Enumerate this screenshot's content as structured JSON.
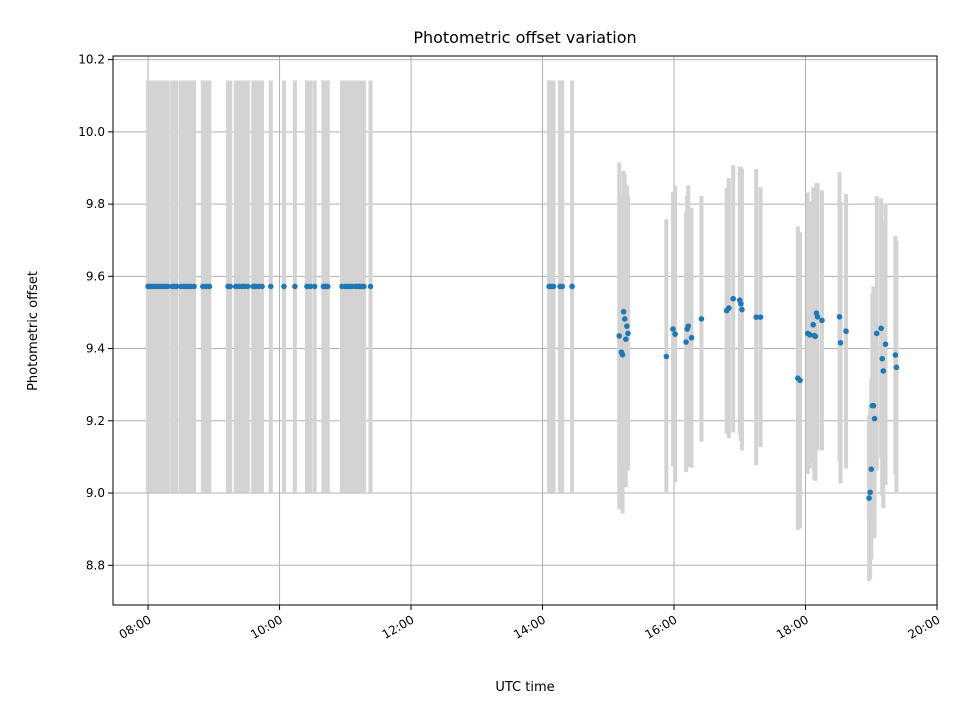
{
  "chart_data": {
    "type": "scatter",
    "title": "Photometric offset variation",
    "xlabel": "UTC time",
    "ylabel": "Photometric offset",
    "x_ticks": [
      "08:00",
      "10:00",
      "12:00",
      "14:00",
      "16:00",
      "18:00",
      "20:00"
    ],
    "y_ticks": [
      "8.8",
      "9.0",
      "9.2",
      "9.4",
      "9.6",
      "9.8",
      "10.0",
      "10.2"
    ],
    "xlim": [
      "07:28",
      "20:00"
    ],
    "ylim": [
      8.69,
      10.21
    ],
    "grid": true,
    "colors": {
      "point": "#1f77b4",
      "errorbar": "#d3d3d3",
      "grid": "#b0b0b0"
    },
    "points": [
      {
        "t": "08:00",
        "y": 9.572,
        "err": 0.57
      },
      {
        "t": "08:02",
        "y": 9.572,
        "err": 0.57
      },
      {
        "t": "08:04",
        "y": 9.572,
        "err": 0.57
      },
      {
        "t": "08:06",
        "y": 9.572,
        "err": 0.57
      },
      {
        "t": "08:08",
        "y": 9.572,
        "err": 0.57
      },
      {
        "t": "08:10",
        "y": 9.572,
        "err": 0.57
      },
      {
        "t": "08:12",
        "y": 9.572,
        "err": 0.57
      },
      {
        "t": "08:14",
        "y": 9.572,
        "err": 0.57
      },
      {
        "t": "08:16",
        "y": 9.572,
        "err": 0.57
      },
      {
        "t": "08:18",
        "y": 9.572,
        "err": 0.57
      },
      {
        "t": "08:22",
        "y": 9.572,
        "err": 0.57
      },
      {
        "t": "08:24",
        "y": 9.572,
        "err": 0.57
      },
      {
        "t": "08:26",
        "y": 9.572,
        "err": 0.57
      },
      {
        "t": "08:30",
        "y": 9.572,
        "err": 0.57
      },
      {
        "t": "08:33",
        "y": 9.572,
        "err": 0.57
      },
      {
        "t": "08:35",
        "y": 9.572,
        "err": 0.57
      },
      {
        "t": "08:37",
        "y": 9.572,
        "err": 0.57
      },
      {
        "t": "08:39",
        "y": 9.572,
        "err": 0.57
      },
      {
        "t": "08:42",
        "y": 9.572,
        "err": 0.57
      },
      {
        "t": "08:50",
        "y": 9.572,
        "err": 0.57
      },
      {
        "t": "08:53",
        "y": 9.572,
        "err": 0.57
      },
      {
        "t": "08:56",
        "y": 9.572,
        "err": 0.57
      },
      {
        "t": "09:13",
        "y": 9.572,
        "err": 0.57
      },
      {
        "t": "09:15",
        "y": 9.572,
        "err": 0.57
      },
      {
        "t": "09:20",
        "y": 9.572,
        "err": 0.57
      },
      {
        "t": "09:23",
        "y": 9.572,
        "err": 0.57
      },
      {
        "t": "09:26",
        "y": 9.572,
        "err": 0.57
      },
      {
        "t": "09:28",
        "y": 9.572,
        "err": 0.57
      },
      {
        "t": "09:31",
        "y": 9.572,
        "err": 0.57
      },
      {
        "t": "09:36",
        "y": 9.572,
        "err": 0.57
      },
      {
        "t": "09:38",
        "y": 9.572,
        "err": 0.57
      },
      {
        "t": "09:41",
        "y": 9.572,
        "err": 0.57
      },
      {
        "t": "09:44",
        "y": 9.572,
        "err": 0.57
      },
      {
        "t": "09:52",
        "y": 9.572,
        "err": 0.57
      },
      {
        "t": "10:04",
        "y": 9.572,
        "err": 0.57
      },
      {
        "t": "10:14",
        "y": 9.572,
        "err": 0.57
      },
      {
        "t": "10:25",
        "y": 9.572,
        "err": 0.57
      },
      {
        "t": "10:28",
        "y": 9.572,
        "err": 0.57
      },
      {
        "t": "10:32",
        "y": 9.572,
        "err": 0.57
      },
      {
        "t": "10:40",
        "y": 9.572,
        "err": 0.57
      },
      {
        "t": "10:42",
        "y": 9.572,
        "err": 0.57
      },
      {
        "t": "10:44",
        "y": 9.572,
        "err": 0.57
      },
      {
        "t": "10:57",
        "y": 9.572,
        "err": 0.57
      },
      {
        "t": "11:00",
        "y": 9.572,
        "err": 0.57
      },
      {
        "t": "11:02",
        "y": 9.572,
        "err": 0.57
      },
      {
        "t": "11:04",
        "y": 9.572,
        "err": 0.57
      },
      {
        "t": "11:06",
        "y": 9.572,
        "err": 0.57
      },
      {
        "t": "11:09",
        "y": 9.572,
        "err": 0.57
      },
      {
        "t": "11:11",
        "y": 9.572,
        "err": 0.57
      },
      {
        "t": "11:13",
        "y": 9.572,
        "err": 0.57
      },
      {
        "t": "11:15",
        "y": 9.572,
        "err": 0.57
      },
      {
        "t": "11:17",
        "y": 9.572,
        "err": 0.57
      },
      {
        "t": "11:23",
        "y": 9.572,
        "err": 0.57
      },
      {
        "t": "14:06",
        "y": 9.572,
        "err": 0.57
      },
      {
        "t": "14:08",
        "y": 9.572,
        "err": 0.57
      },
      {
        "t": "14:10",
        "y": 9.572,
        "err": 0.57
      },
      {
        "t": "14:16",
        "y": 9.572,
        "err": 0.57
      },
      {
        "t": "14:18",
        "y": 9.572,
        "err": 0.57
      },
      {
        "t": "14:27",
        "y": 9.572,
        "err": 0.57
      },
      {
        "t": "15:10",
        "y": 9.435,
        "err": 0.48
      },
      {
        "t": "15:12",
        "y": 9.39,
        "err": 0.43
      },
      {
        "t": "15:13",
        "y": 9.383,
        "err": 0.44
      },
      {
        "t": "15:14",
        "y": 9.502,
        "err": 0.39
      },
      {
        "t": "15:15",
        "y": 9.482,
        "err": 0.4
      },
      {
        "t": "15:16",
        "y": 9.426,
        "err": 0.41
      },
      {
        "t": "15:17",
        "y": 9.462,
        "err": 0.39
      },
      {
        "t": "15:18",
        "y": 9.442,
        "err": 0.38
      },
      {
        "t": "15:53",
        "y": 9.378,
        "err": 0.38
      },
      {
        "t": "15:59",
        "y": 9.454,
        "err": 0.38
      },
      {
        "t": "16:01",
        "y": 9.44,
        "err": 0.41
      },
      {
        "t": "16:11",
        "y": 9.418,
        "err": 0.36
      },
      {
        "t": "16:12",
        "y": 9.454,
        "err": 0.37
      },
      {
        "t": "16:13",
        "y": 9.462,
        "err": 0.39
      },
      {
        "t": "16:16",
        "y": 9.43,
        "err": 0.36
      },
      {
        "t": "16:25",
        "y": 9.482,
        "err": 0.34
      },
      {
        "t": "16:48",
        "y": 9.505,
        "err": 0.34
      },
      {
        "t": "16:50",
        "y": 9.512,
        "err": 0.36
      },
      {
        "t": "16:54",
        "y": 9.538,
        "err": 0.37
      },
      {
        "t": "17:00",
        "y": 9.534,
        "err": 0.37
      },
      {
        "t": "17:01",
        "y": 9.524,
        "err": 0.38
      },
      {
        "t": "17:02",
        "y": 9.508,
        "err": 0.39
      },
      {
        "t": "17:15",
        "y": 9.487,
        "err": 0.41
      },
      {
        "t": "17:19",
        "y": 9.487,
        "err": 0.36
      },
      {
        "t": "17:53",
        "y": 9.318,
        "err": 0.42
      },
      {
        "t": "17:55",
        "y": 9.312,
        "err": 0.41
      },
      {
        "t": "18:02",
        "y": 9.442,
        "err": 0.39
      },
      {
        "t": "18:04",
        "y": 9.438,
        "err": 0.37
      },
      {
        "t": "18:07",
        "y": 9.466,
        "err": 0.38
      },
      {
        "t": "18:08",
        "y": 9.436,
        "err": 0.4
      },
      {
        "t": "18:09",
        "y": 9.434,
        "err": 0.4
      },
      {
        "t": "18:10",
        "y": 9.498,
        "err": 0.36
      },
      {
        "t": "18:11",
        "y": 9.488,
        "err": 0.37
      },
      {
        "t": "18:15",
        "y": 9.478,
        "err": 0.36
      },
      {
        "t": "18:31",
        "y": 9.488,
        "err": 0.4
      },
      {
        "t": "18:32",
        "y": 9.416,
        "err": 0.39
      },
      {
        "t": "18:37",
        "y": 9.448,
        "err": 0.38
      },
      {
        "t": "18:58",
        "y": 8.986,
        "err": 0.23
      },
      {
        "t": "18:59",
        "y": 9.002,
        "err": 0.24
      },
      {
        "t": "19:00",
        "y": 9.066,
        "err": 0.25
      },
      {
        "t": "19:01",
        "y": 9.242,
        "err": 0.31
      },
      {
        "t": "19:02",
        "y": 9.242,
        "err": 0.33
      },
      {
        "t": "19:03",
        "y": 9.206,
        "err": 0.33
      },
      {
        "t": "19:05",
        "y": 9.442,
        "err": 0.38
      },
      {
        "t": "19:09",
        "y": 9.456,
        "err": 0.36
      },
      {
        "t": "19:10",
        "y": 9.372,
        "err": 0.38
      },
      {
        "t": "19:11",
        "y": 9.338,
        "err": 0.38
      },
      {
        "t": "19:13",
        "y": 9.412,
        "err": 0.39
      },
      {
        "t": "19:22",
        "y": 9.382,
        "err": 0.33
      },
      {
        "t": "19:23",
        "y": 9.348,
        "err": 0.35
      }
    ]
  }
}
